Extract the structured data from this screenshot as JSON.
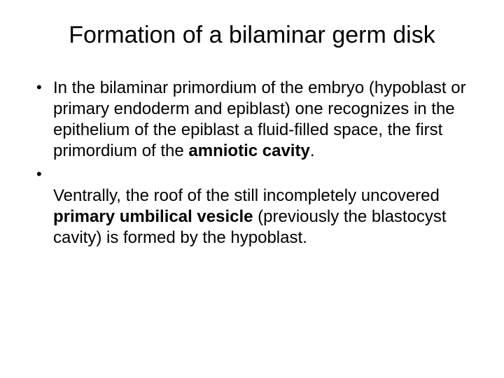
{
  "title": "Formation of a bilaminar germ disk",
  "bullets": [
    {
      "pre": "In the bilaminar primordium of the embryo (hypoblast or primary endoderm and epiblast) one recognizes in the epithelium of the epiblast a fluid-filled space, the first primordium of the ",
      "bold": "amniotic cavity",
      "post": "."
    },
    {
      "br": true,
      "pre": "Ventrally, the roof of the still incompletely uncovered ",
      "bold": "primary umbilical vesicle",
      "post": " (previously the blastocyst cavity) is formed by the hypoblast."
    }
  ],
  "colors": {
    "background": "#ffffff",
    "text": "#000000"
  },
  "typography": {
    "title_fontsize": 34,
    "body_fontsize": 24,
    "font_family": "Arial"
  }
}
